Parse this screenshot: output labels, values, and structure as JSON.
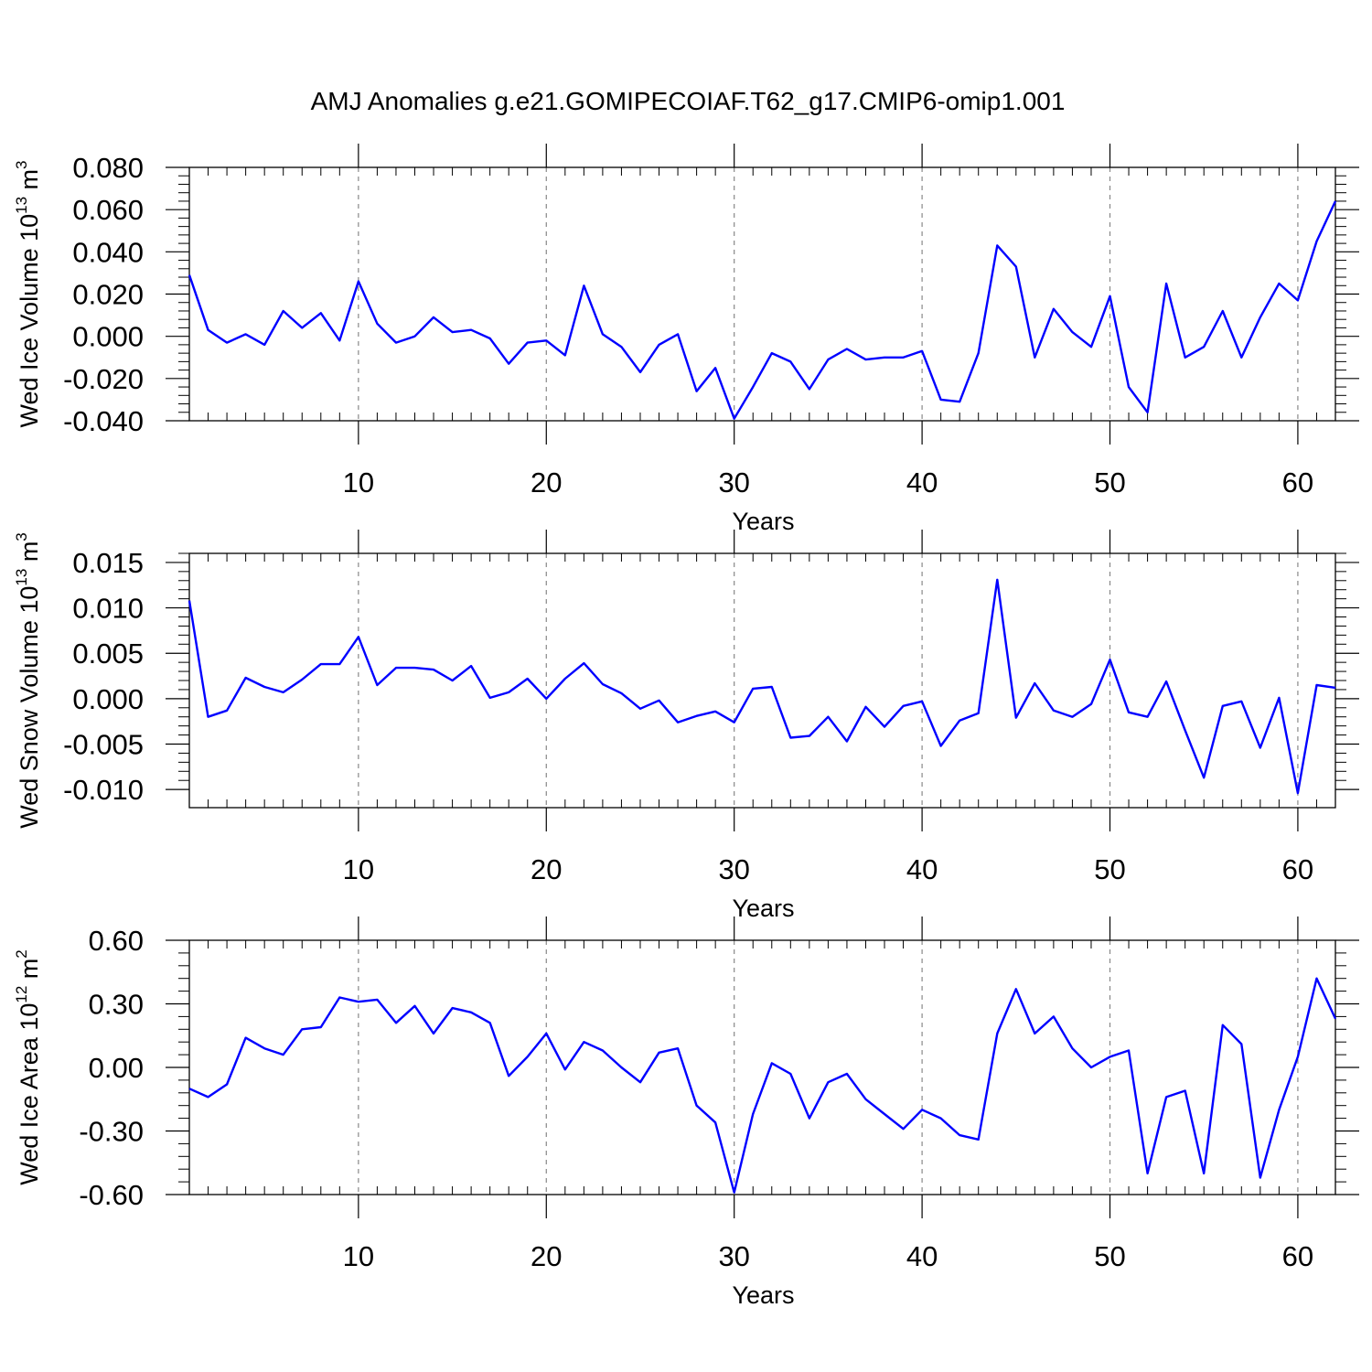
{
  "title": "AMJ Anomalies g.e21.GOMIPECOIAF.T62_g17.CMIP6-omip1.001",
  "colors": {
    "line": "#0000ff",
    "axis": "#000000",
    "grid": "#888888"
  },
  "chart_data": [
    {
      "type": "line",
      "ylabel_main": "Wed Ice Volume 10",
      "ylabel_exp": "13",
      "ylabel_unit": " m",
      "ylabel_unit_exp": "3",
      "xlabel": "Years",
      "xlim": [
        1,
        62
      ],
      "ylim": [
        -0.04,
        0.08
      ],
      "xticks": [
        10,
        20,
        30,
        40,
        50,
        60
      ],
      "xtick_labels": [
        "10",
        "20",
        "30",
        "40",
        "50",
        "60"
      ],
      "yticks": [
        -0.04,
        -0.02,
        0.0,
        0.02,
        0.04,
        0.06,
        0.08
      ],
      "ytick_labels": [
        "-0.040",
        "-0.020",
        "0.000",
        "0.020",
        "0.040",
        "0.060",
        "0.080"
      ],
      "grid_x": true,
      "series": [
        {
          "name": "Wed Ice Volume",
          "x": [
            1,
            2,
            3,
            4,
            5,
            6,
            7,
            8,
            9,
            10,
            11,
            12,
            13,
            14,
            15,
            16,
            17,
            18,
            19,
            20,
            21,
            22,
            23,
            24,
            25,
            26,
            27,
            28,
            29,
            30,
            31,
            32,
            33,
            34,
            35,
            36,
            37,
            38,
            39,
            40,
            41,
            42,
            43,
            44,
            45,
            46,
            47,
            48,
            49,
            50,
            51,
            52,
            53,
            54,
            55,
            56,
            57,
            58,
            59,
            60,
            61,
            62
          ],
          "values": [
            0.029,
            0.003,
            -0.003,
            0.001,
            -0.004,
            0.012,
            0.004,
            0.011,
            -0.002,
            0.026,
            0.006,
            -0.003,
            0.0,
            0.009,
            0.002,
            0.003,
            -0.001,
            -0.013,
            -0.003,
            -0.002,
            -0.009,
            0.024,
            0.001,
            -0.005,
            -0.017,
            -0.004,
            0.001,
            -0.026,
            -0.015,
            -0.039,
            -0.024,
            -0.008,
            -0.012,
            -0.025,
            -0.011,
            -0.006,
            -0.011,
            -0.01,
            -0.01,
            -0.007,
            -0.03,
            -0.031,
            -0.008,
            0.043,
            0.033,
            -0.01,
            0.013,
            0.002,
            -0.005,
            0.019,
            -0.024,
            -0.036,
            0.025,
            -0.01,
            -0.005,
            0.012,
            -0.01,
            0.009,
            0.025,
            0.017,
            0.045,
            0.064
          ]
        }
      ]
    },
    {
      "type": "line",
      "ylabel_main": "Wed Snow Volume 10",
      "ylabel_exp": "13",
      "ylabel_unit": " m",
      "ylabel_unit_exp": "3",
      "xlabel": "Years",
      "xlim": [
        1,
        62
      ],
      "ylim": [
        -0.012,
        0.016
      ],
      "xticks": [
        10,
        20,
        30,
        40,
        50,
        60
      ],
      "xtick_labels": [
        "10",
        "20",
        "30",
        "40",
        "50",
        "60"
      ],
      "yticks": [
        -0.01,
        -0.005,
        0.0,
        0.005,
        0.01,
        0.015
      ],
      "ytick_labels": [
        "-0.010",
        "-0.005",
        "0.000",
        "0.005",
        "0.010",
        "0.015"
      ],
      "grid_x": true,
      "series": [
        {
          "name": "Wed Snow Volume",
          "x": [
            1,
            2,
            3,
            4,
            5,
            6,
            7,
            8,
            9,
            10,
            11,
            12,
            13,
            14,
            15,
            16,
            17,
            18,
            19,
            20,
            21,
            22,
            23,
            24,
            25,
            26,
            27,
            28,
            29,
            30,
            31,
            32,
            33,
            34,
            35,
            36,
            37,
            38,
            39,
            40,
            41,
            42,
            43,
            44,
            45,
            46,
            47,
            48,
            49,
            50,
            51,
            52,
            53,
            54,
            55,
            56,
            57,
            58,
            59,
            60,
            61,
            62
          ],
          "values": [
            0.0108,
            -0.002,
            -0.0013,
            0.0023,
            0.0013,
            0.0007,
            0.0021,
            0.0038,
            0.0038,
            0.0068,
            0.0015,
            0.0034,
            0.0034,
            0.0032,
            0.002,
            0.0036,
            0.0001,
            0.0007,
            0.0022,
            0.0,
            0.0022,
            0.0039,
            0.0016,
            0.0006,
            -0.0011,
            -0.0002,
            -0.0026,
            -0.0019,
            -0.0014,
            -0.0026,
            0.0011,
            0.0013,
            -0.0043,
            -0.0041,
            -0.002,
            -0.0047,
            -0.0009,
            -0.0031,
            -0.0008,
            -0.0003,
            -0.0052,
            -0.0024,
            -0.0016,
            0.0131,
            -0.0021,
            0.0017,
            -0.0013,
            -0.002,
            -0.0006,
            0.0043,
            -0.0015,
            -0.002,
            0.0019,
            -0.0035,
            -0.0087,
            -0.0008,
            -0.0003,
            -0.0054,
            0.0001,
            -0.0104,
            0.0015,
            0.0012
          ]
        }
      ]
    },
    {
      "type": "line",
      "ylabel_main": "Wed Ice Area 10",
      "ylabel_exp": "12",
      "ylabel_unit": " m",
      "ylabel_unit_exp": "2",
      "xlabel": "Years",
      "xlim": [
        1,
        62
      ],
      "ylim": [
        -0.6,
        0.6
      ],
      "xticks": [
        10,
        20,
        30,
        40,
        50,
        60
      ],
      "xtick_labels": [
        "10",
        "20",
        "30",
        "40",
        "50",
        "60"
      ],
      "yticks": [
        -0.6,
        -0.3,
        0.0,
        0.3,
        0.6
      ],
      "ytick_labels": [
        "-0.60",
        "-0.30",
        "0.00",
        "0.30",
        "0.60"
      ],
      "grid_x": true,
      "series": [
        {
          "name": "Wed Ice Area",
          "x": [
            1,
            2,
            3,
            4,
            5,
            6,
            7,
            8,
            9,
            10,
            11,
            12,
            13,
            14,
            15,
            16,
            17,
            18,
            19,
            20,
            21,
            22,
            23,
            24,
            25,
            26,
            27,
            28,
            29,
            30,
            31,
            32,
            33,
            34,
            35,
            36,
            37,
            38,
            39,
            40,
            41,
            42,
            43,
            44,
            45,
            46,
            47,
            48,
            49,
            50,
            51,
            52,
            53,
            54,
            55,
            56,
            57,
            58,
            59,
            60,
            61,
            62
          ],
          "values": [
            -0.1,
            -0.14,
            -0.08,
            0.14,
            0.09,
            0.06,
            0.18,
            0.19,
            0.33,
            0.31,
            0.32,
            0.21,
            0.29,
            0.16,
            0.28,
            0.26,
            0.21,
            -0.04,
            0.05,
            0.16,
            -0.01,
            0.12,
            0.08,
            0.0,
            -0.07,
            0.07,
            0.09,
            -0.18,
            -0.26,
            -0.59,
            -0.22,
            0.02,
            -0.03,
            -0.24,
            -0.07,
            -0.03,
            -0.15,
            -0.22,
            -0.29,
            -0.2,
            -0.24,
            -0.32,
            -0.34,
            0.16,
            0.37,
            0.16,
            0.24,
            0.09,
            0.0,
            0.05,
            0.08,
            -0.5,
            -0.14,
            -0.11,
            -0.5,
            0.2,
            0.11,
            -0.52,
            -0.2,
            0.05,
            0.42,
            0.23
          ]
        }
      ]
    }
  ]
}
